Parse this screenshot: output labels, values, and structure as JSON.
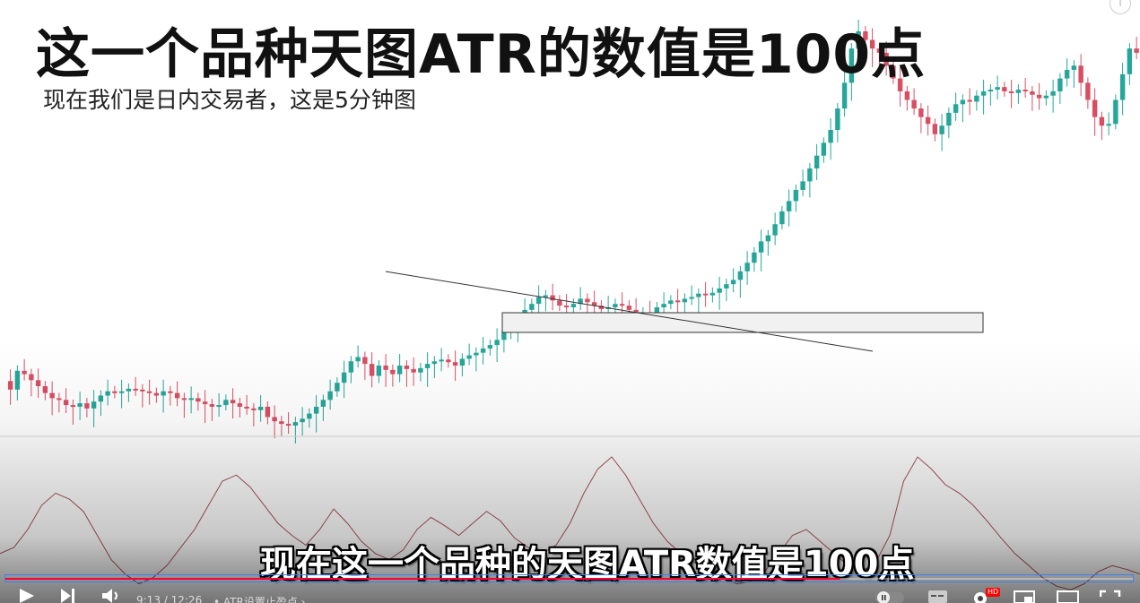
{
  "video": {
    "title": "这一个品种天图ATR的数值是100点",
    "subtitle": "现在我们是日内交易者，这是5分钟图",
    "caption": "现在这一个品种的天图ATR数值是100点",
    "current_time": "9:13",
    "duration": "12:26",
    "time_display": "9:13 / 12:26",
    "chapter": "• ATR设置止盈点 ›",
    "progress_fraction": 0.741,
    "hd_badge": "HD"
  },
  "icons": {
    "play": "play-icon",
    "next": "next-icon",
    "volume": "volume-icon",
    "autoplay": "autoplay-toggle-icon",
    "subtitles": "subtitles-icon",
    "settings": "gear-icon",
    "miniplayer": "miniplayer-icon",
    "theater": "theater-mode-icon",
    "fullscreen": "fullscreen-icon",
    "info": "info-icon"
  },
  "colors": {
    "bull": "#26a69a",
    "bear": "#d84f63",
    "atr_line": "#a8555d",
    "progress_played": "#ff0033",
    "progress_outline": "#3b82f6"
  },
  "chart_data": {
    "type": "candlestick",
    "timeframe": "5分钟图",
    "indicator": "ATR",
    "ohlc_path": [
      0.72,
      0.62,
      0.84,
      0.8,
      0.73,
      0.66,
      0.58,
      0.52,
      0.5,
      0.44,
      0.42,
      0.46,
      0.4,
      0.48,
      0.55,
      0.6,
      0.58,
      0.6,
      0.63,
      0.62,
      0.6,
      0.58,
      0.55,
      0.6,
      0.58,
      0.52,
      0.5,
      0.52,
      0.48,
      0.45,
      0.42,
      0.44,
      0.5,
      0.46,
      0.42,
      0.4,
      0.38,
      0.42,
      0.3,
      0.25,
      0.22,
      0.2,
      0.24,
      0.28,
      0.34,
      0.42,
      0.5,
      0.6,
      0.7,
      0.82,
      0.95,
      1.0,
      0.92,
      0.78,
      0.9,
      0.85,
      0.8,
      0.9,
      0.86,
      0.82,
      0.87,
      0.92,
      0.95,
      0.97,
      0.94,
      0.9,
      0.98,
      1.02,
      1.05,
      1.1,
      1.14,
      1.2,
      1.3,
      1.38,
      1.45,
      1.55,
      1.62,
      1.7,
      1.72,
      1.66,
      1.6,
      1.58,
      1.62,
      1.68,
      1.64,
      1.6,
      1.56,
      1.58,
      1.62,
      1.6,
      1.55,
      1.5,
      1.52,
      1.5,
      1.58,
      1.62,
      1.66,
      1.64,
      1.68,
      1.7,
      1.74,
      1.72,
      1.75,
      1.8,
      1.85,
      1.9,
      2.0,
      2.1,
      2.22,
      2.35,
      2.42,
      2.55,
      2.7,
      2.82,
      2.95,
      3.05,
      3.2,
      3.35,
      3.5,
      3.65,
      3.9,
      4.2,
      4.6,
      4.8,
      4.7,
      4.6,
      4.55,
      4.4,
      4.25,
      4.1,
      4.0,
      3.9,
      3.8,
      3.72,
      3.6,
      3.7,
      3.85,
      3.95,
      4.0,
      3.98,
      4.05,
      4.1,
      4.12,
      4.15,
      4.1,
      4.08,
      4.12,
      4.1,
      4.06,
      4.02,
      4.05,
      4.1,
      4.25,
      4.35,
      4.4,
      4.2,
      4.0,
      3.8,
      3.7,
      3.72,
      4.0,
      4.3,
      4.6,
      4.55
    ],
    "atr_path": [
      0.35,
      0.4,
      0.55,
      0.75,
      0.85,
      0.8,
      0.7,
      0.5,
      0.3,
      0.18,
      0.1,
      0.15,
      0.25,
      0.4,
      0.55,
      0.75,
      0.95,
      1.0,
      0.9,
      0.75,
      0.6,
      0.5,
      0.42,
      0.55,
      0.72,
      0.6,
      0.45,
      0.35,
      0.3,
      0.38,
      0.55,
      0.65,
      0.58,
      0.5,
      0.6,
      0.7,
      0.62,
      0.48,
      0.4,
      0.35,
      0.42,
      0.6,
      0.85,
      1.05,
      1.15,
      1.0,
      0.8,
      0.6,
      0.45,
      0.35,
      0.3,
      0.22,
      0.15,
      0.1,
      0.12,
      0.2,
      0.35,
      0.5,
      0.55,
      0.45,
      0.35,
      0.25,
      0.2,
      0.28,
      0.5,
      0.95,
      1.15,
      1.05,
      0.92,
      0.85,
      0.75,
      0.62,
      0.48,
      0.35,
      0.25,
      0.15,
      0.08,
      0.05,
      0.1,
      0.2,
      0.25,
      0.22,
      0.18
    ]
  }
}
